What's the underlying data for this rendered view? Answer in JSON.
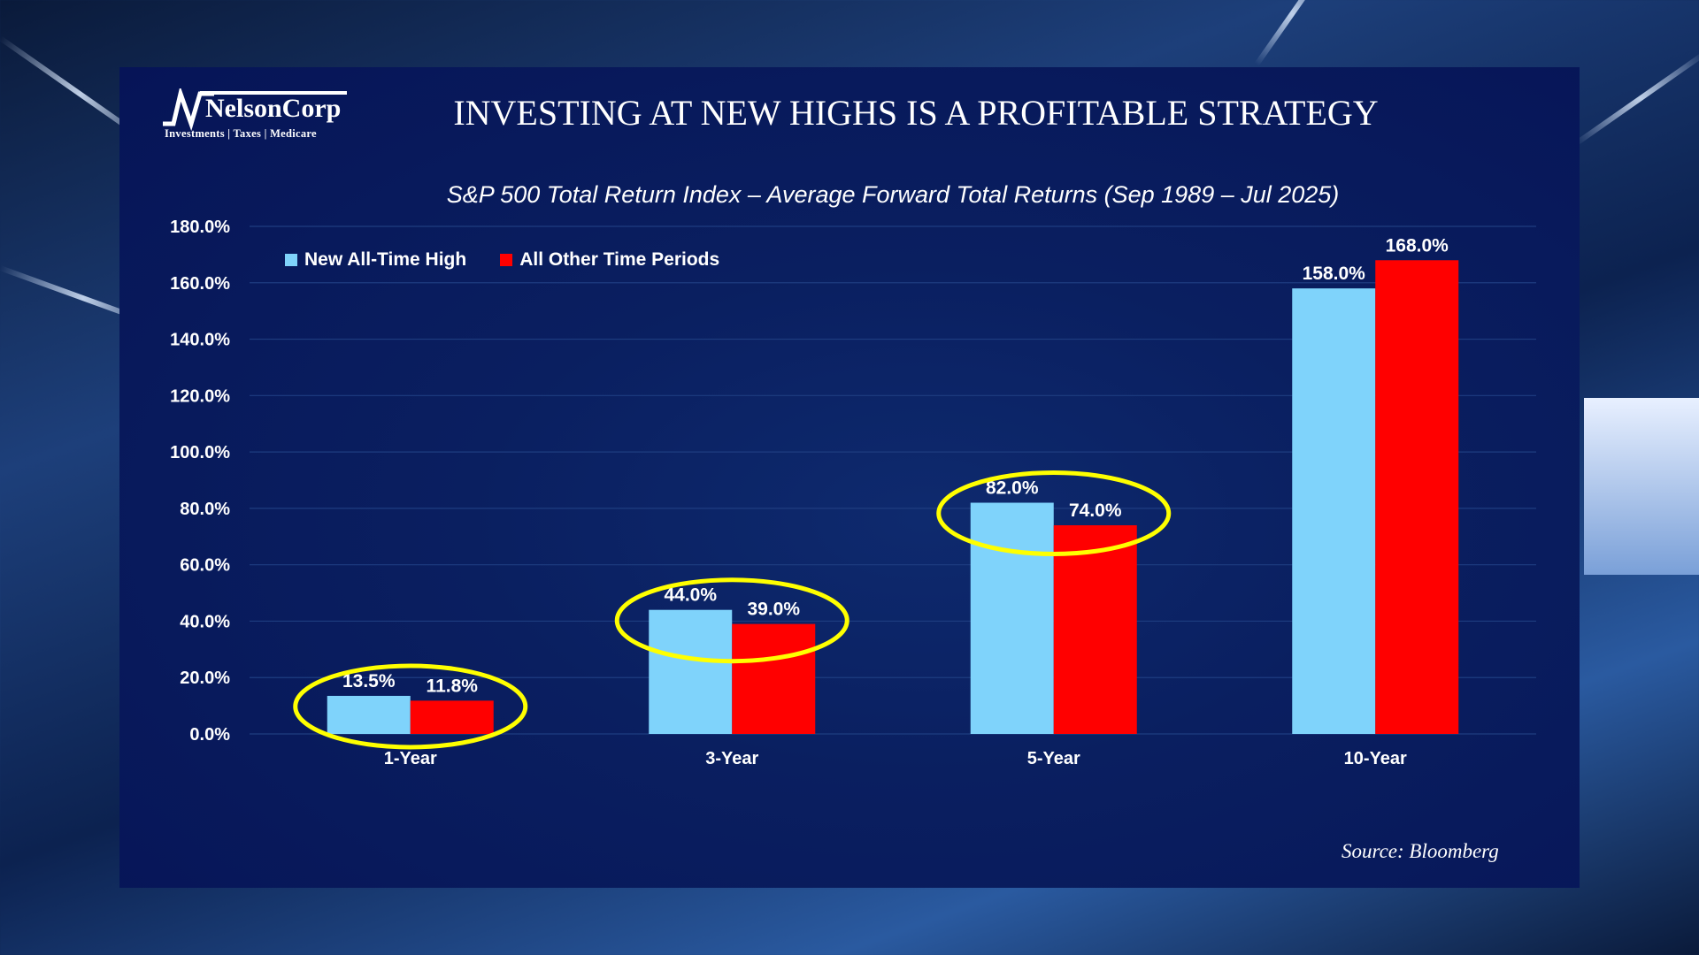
{
  "header": {
    "logo_name": "NelsonCorp",
    "logo_tagline": "Investments | Taxes | Medicare",
    "title": "INVESTING AT NEW HIGHS IS A PROFITABLE STRATEGY"
  },
  "footer": {
    "source": "Source: Bloomberg"
  },
  "chart_data": {
    "type": "bar",
    "title": "S&P 500 Total Return Index – Average Forward Total Returns (Sep 1989 – Jul 2025)",
    "categories": [
      "1-Year",
      "3-Year",
      "5-Year",
      "10-Year"
    ],
    "series": [
      {
        "name": "New All-Time High",
        "color": "#7fd3fb",
        "values": [
          13.5,
          44.0,
          82.0,
          158.0
        ],
        "labels": [
          "13.5%",
          "44.0%",
          "82.0%",
          "158.0%"
        ]
      },
      {
        "name": "All Other Time Periods",
        "color": "#ff0000",
        "values": [
          11.8,
          39.0,
          74.0,
          168.0
        ],
        "labels": [
          "11.8%",
          "39.0%",
          "74.0%",
          "168.0%"
        ]
      }
    ],
    "ylim": [
      0,
      180
    ],
    "yticks": [
      "0.0%",
      "20.0%",
      "40.0%",
      "60.0%",
      "80.0%",
      "100.0%",
      "120.0%",
      "140.0%",
      "160.0%",
      "180.0%"
    ],
    "grid": true,
    "legend": "top-left",
    "highlighted_categories": [
      "1-Year",
      "3-Year",
      "5-Year"
    ],
    "highlight_color": "#ffff00"
  }
}
